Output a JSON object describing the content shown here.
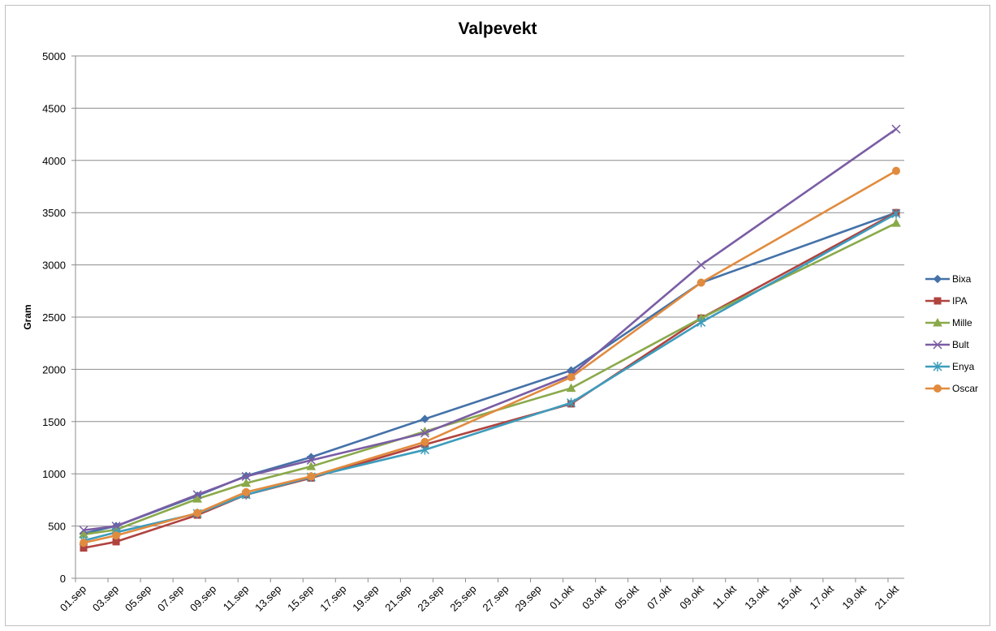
{
  "chart_data": {
    "type": "line",
    "title": "Valpevekt",
    "xlabel": "",
    "ylabel": "Gram",
    "ylim": [
      0,
      5000
    ],
    "y_ticks": [
      0,
      500,
      1000,
      1500,
      2000,
      2500,
      3000,
      3500,
      4000,
      4500,
      5000
    ],
    "x_tick_labels": [
      "01.sep",
      "03.sep",
      "05.sep",
      "07.sep",
      "09.sep",
      "11.sep",
      "13.sep",
      "15.sep",
      "17.sep",
      "19.sep",
      "21.sep",
      "23.sep",
      "25.sep",
      "27.sep",
      "29.sep",
      "01.okt",
      "03.okt",
      "05.okt",
      "07.okt",
      "09.okt",
      "11.okt",
      "13.okt",
      "15.okt",
      "17.okt",
      "19.okt",
      "21.okt"
    ],
    "x_dates": [
      "01.sep",
      "03.sep",
      "08.sep",
      "11.sep",
      "15.sep",
      "22.sep",
      "01.okt",
      "09.okt",
      "21.okt"
    ],
    "grid": true,
    "legend_position": "right",
    "series": [
      {
        "name": "Bixa",
        "color": "#4472a8",
        "marker": "diamond",
        "values": [
          430,
          500,
          790,
          980,
          1160,
          1525,
          1990,
          2830,
          3500
        ]
      },
      {
        "name": "IPA",
        "color": "#b0433f",
        "marker": "square",
        "values": [
          290,
          350,
          605,
          800,
          960,
          1280,
          1670,
          2490,
          3500
        ]
      },
      {
        "name": "Mille",
        "color": "#8aa94a",
        "marker": "triangle",
        "values": [
          420,
          465,
          760,
          910,
          1070,
          1405,
          1820,
          2490,
          3400
        ]
      },
      {
        "name": "Bult",
        "color": "#7a5da4",
        "marker": "x",
        "values": [
          460,
          500,
          800,
          975,
          1130,
          1390,
          1945,
          3000,
          4300
        ]
      },
      {
        "name": "Enya",
        "color": "#3d9cbc",
        "marker": "star",
        "values": [
          360,
          440,
          620,
          800,
          970,
          1230,
          1680,
          2450,
          3490
        ]
      },
      {
        "name": "Oscar",
        "color": "#e18b3e",
        "marker": "circle",
        "values": [
          340,
          410,
          625,
          825,
          975,
          1305,
          1925,
          2830,
          3900
        ]
      }
    ]
  }
}
